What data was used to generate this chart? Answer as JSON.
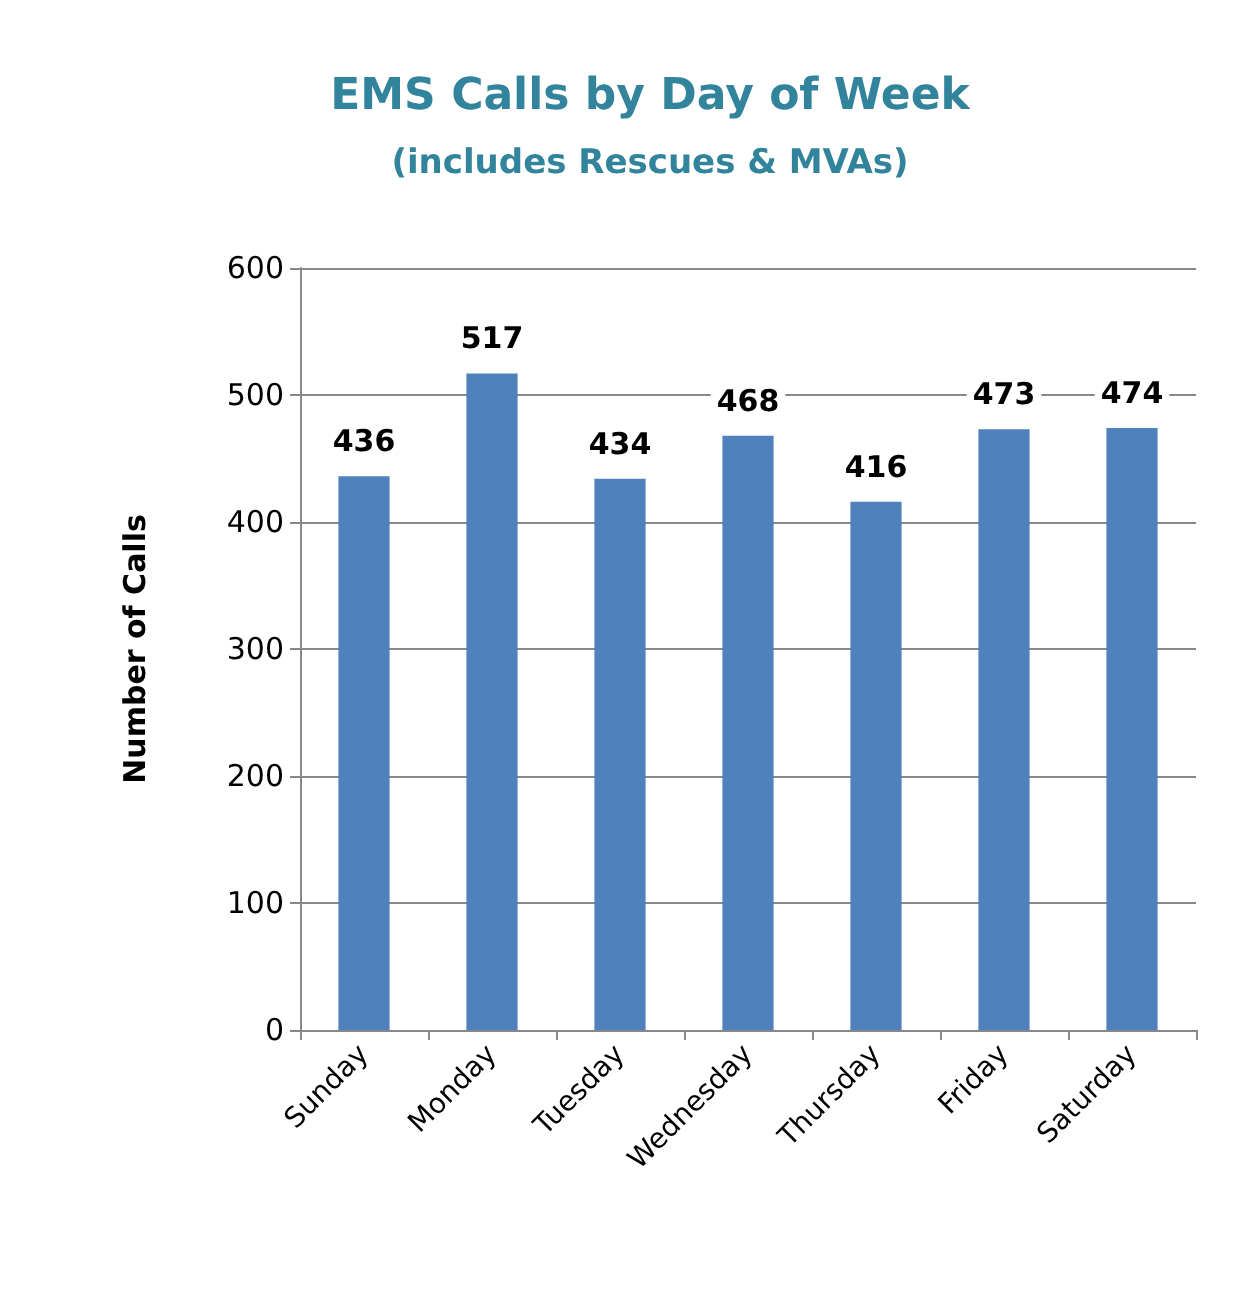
{
  "chart_data": {
    "type": "bar",
    "title": "EMS Calls by Day of Week",
    "subtitle": "(includes Rescues & MVAs)",
    "ylabel": "Number of Calls",
    "categories": [
      "Sunday",
      "Monday",
      "Tuesday",
      "Wednesday",
      "Thursday",
      "Friday",
      "Saturday"
    ],
    "values": [
      436,
      517,
      434,
      468,
      416,
      473,
      474
    ],
    "color": "#4f81bd",
    "ylim": [
      0,
      600
    ],
    "yticks": [
      0,
      100,
      200,
      300,
      400,
      500,
      600
    ],
    "grid": "y",
    "data_labels": true
  }
}
